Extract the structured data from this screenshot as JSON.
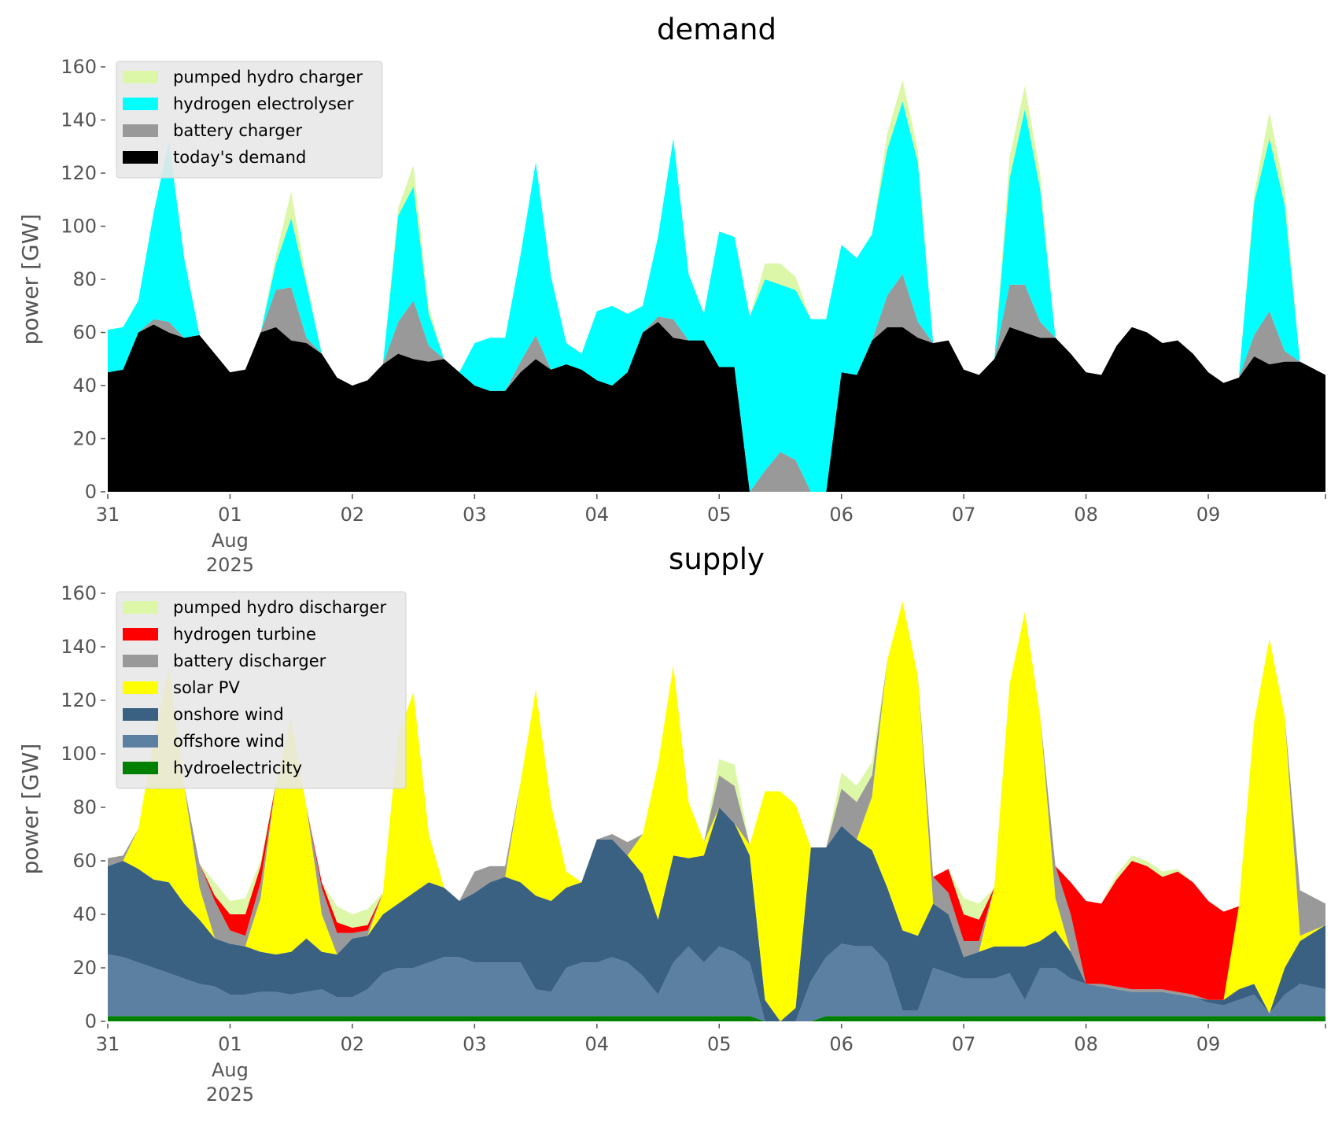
{
  "chart_data": [
    {
      "type": "area",
      "stacked": true,
      "title": "demand",
      "xlabel": "",
      "ylabel": "power [GW]",
      "ylim": [
        0,
        160
      ],
      "yticks": [
        0,
        20,
        40,
        60,
        80,
        100,
        120,
        140,
        160
      ],
      "x_unit": "hours since 2025-07-31 00:00",
      "x_step_hours": 3,
      "xlim": [
        0,
        239
      ],
      "xticks": [
        {
          "hour": 0,
          "label": "31"
        },
        {
          "hour": 24,
          "label": "01",
          "sub1": "Aug",
          "sub2": "2025"
        },
        {
          "hour": 48,
          "label": "02"
        },
        {
          "hour": 72,
          "label": "03"
        },
        {
          "hour": 96,
          "label": "04"
        },
        {
          "hour": 120,
          "label": "05"
        },
        {
          "hour": 144,
          "label": "06"
        },
        {
          "hour": 168,
          "label": "07"
        },
        {
          "hour": 192,
          "label": "08"
        },
        {
          "hour": 216,
          "label": "09"
        }
      ],
      "legend_position": "top-left",
      "legend_order": [
        "pumped hydro charger",
        "hydrogen electrolyser",
        "battery charger",
        "today's demand"
      ],
      "series": [
        {
          "name": "today's demand",
          "color": "#000000",
          "values": [
            45,
            46,
            60,
            63,
            60,
            58,
            59,
            52,
            45,
            46,
            60,
            62,
            57,
            56,
            52,
            43,
            40,
            42,
            48,
            52,
            50,
            49,
            50,
            45,
            40,
            38,
            38,
            45,
            50,
            46,
            48,
            46,
            42,
            40,
            45,
            60,
            64,
            58,
            57,
            57,
            47,
            47,
            0,
            0,
            0,
            0,
            0,
            0,
            45,
            44,
            57,
            62,
            62,
            58,
            56,
            57,
            46,
            44,
            50,
            62,
            60,
            58,
            58,
            52,
            45,
            44,
            55,
            62,
            60,
            56,
            57,
            52,
            45,
            41,
            43,
            51,
            48,
            49,
            49,
            44
          ]
        },
        {
          "name": "battery charger",
          "color": "#999999",
          "values": [
            0,
            0,
            0,
            2,
            4,
            0,
            0,
            0,
            0,
            0,
            0,
            14,
            20,
            2,
            0,
            0,
            0,
            0,
            0,
            12,
            22,
            6,
            0,
            0,
            0,
            0,
            0,
            4,
            9,
            0,
            0,
            0,
            0,
            0,
            0,
            0,
            2,
            7,
            0,
            0,
            0,
            0,
            0,
            8,
            15,
            12,
            0,
            0,
            0,
            0,
            0,
            12,
            20,
            6,
            0,
            0,
            0,
            0,
            0,
            16,
            18,
            6,
            0,
            0,
            0,
            0,
            0,
            0,
            0,
            0,
            0,
            0,
            0,
            0,
            0,
            8,
            20,
            4,
            0,
            0
          ]
        },
        {
          "name": "hydrogen electrolyser",
          "color": "#00ffff",
          "values": [
            16,
            16,
            12,
            40,
            68,
            30,
            0,
            0,
            0,
            0,
            0,
            10,
            26,
            20,
            0,
            0,
            0,
            0,
            0,
            40,
            43,
            12,
            0,
            0,
            16,
            20,
            20,
            40,
            65,
            35,
            8,
            6,
            26,
            30,
            22,
            10,
            30,
            68,
            25,
            10,
            51,
            49,
            66,
            72,
            63,
            64,
            65,
            65,
            48,
            44,
            40,
            55,
            65,
            60,
            0,
            0,
            0,
            0,
            0,
            40,
            66,
            50,
            0,
            0,
            0,
            0,
            0,
            0,
            0,
            0,
            0,
            0,
            0,
            0,
            0,
            50,
            65,
            55,
            0,
            0
          ]
        },
        {
          "name": "pumped hydro charger",
          "color": "#dcf7a8",
          "values": [
            0,
            0,
            0,
            0,
            0,
            0,
            0,
            0,
            0,
            0,
            0,
            3,
            10,
            2,
            0,
            0,
            0,
            0,
            0,
            3,
            8,
            3,
            0,
            0,
            0,
            0,
            0,
            0,
            0,
            0,
            0,
            0,
            0,
            0,
            0,
            0,
            0,
            0,
            0,
            0,
            0,
            0,
            0,
            6,
            8,
            5,
            0,
            0,
            0,
            0,
            0,
            6,
            8,
            5,
            0,
            0,
            0,
            0,
            0,
            8,
            9,
            6,
            0,
            0,
            0,
            0,
            0,
            0,
            0,
            0,
            0,
            0,
            0,
            0,
            0,
            3,
            10,
            6,
            0,
            0
          ]
        }
      ]
    },
    {
      "type": "area",
      "stacked": true,
      "title": "supply",
      "xlabel": "",
      "ylabel": "power [GW]",
      "ylim": [
        0,
        160
      ],
      "yticks": [
        0,
        20,
        40,
        60,
        80,
        100,
        120,
        140,
        160
      ],
      "x_unit": "hours since 2025-07-31 00:00",
      "x_step_hours": 3,
      "xlim": [
        0,
        239
      ],
      "xticks": [
        {
          "hour": 0,
          "label": "31"
        },
        {
          "hour": 24,
          "label": "01",
          "sub1": "Aug",
          "sub2": "2025"
        },
        {
          "hour": 48,
          "label": "02"
        },
        {
          "hour": 72,
          "label": "03"
        },
        {
          "hour": 96,
          "label": "04"
        },
        {
          "hour": 120,
          "label": "05"
        },
        {
          "hour": 144,
          "label": "06"
        },
        {
          "hour": 168,
          "label": "07"
        },
        {
          "hour": 192,
          "label": "08"
        },
        {
          "hour": 216,
          "label": "09"
        }
      ],
      "legend_position": "top-left",
      "legend_order": [
        "pumped hydro discharger",
        "hydrogen turbine",
        "battery discharger",
        "solar PV",
        "onshore wind",
        "offshore wind",
        "hydroelectricity"
      ],
      "series": [
        {
          "name": "hydroelectricity",
          "color": "#008000",
          "values": [
            2,
            2,
            2,
            2,
            2,
            2,
            2,
            2,
            2,
            2,
            2,
            2,
            2,
            2,
            2,
            2,
            2,
            2,
            2,
            2,
            2,
            2,
            2,
            2,
            2,
            2,
            2,
            2,
            2,
            2,
            2,
            2,
            2,
            2,
            2,
            2,
            2,
            2,
            2,
            2,
            2,
            2,
            2,
            0,
            0,
            0,
            0,
            2,
            2,
            2,
            2,
            2,
            2,
            2,
            2,
            2,
            2,
            2,
            2,
            2,
            2,
            2,
            2,
            2,
            2,
            2,
            2,
            2,
            2,
            2,
            2,
            2,
            2,
            2,
            2,
            2,
            2,
            2,
            2,
            2
          ]
        },
        {
          "name": "offshore wind",
          "color": "#5b80a2",
          "values": [
            23,
            22,
            20,
            18,
            16,
            14,
            12,
            11,
            8,
            8,
            9,
            9,
            8,
            9,
            10,
            7,
            7,
            10,
            16,
            18,
            18,
            20,
            22,
            22,
            20,
            20,
            20,
            20,
            10,
            9,
            18,
            20,
            20,
            22,
            20,
            15,
            8,
            20,
            26,
            20,
            26,
            24,
            20,
            0,
            0,
            0,
            15,
            22,
            27,
            26,
            26,
            20,
            2,
            2,
            18,
            16,
            14,
            14,
            14,
            16,
            6,
            18,
            18,
            14,
            12,
            11,
            10,
            9,
            9,
            9,
            8,
            7,
            5,
            4,
            6,
            8,
            1,
            8,
            12,
            10
          ]
        },
        {
          "name": "onshore wind",
          "color": "#3b6182",
          "values": [
            33,
            36,
            35,
            33,
            34,
            28,
            24,
            18,
            19,
            18,
            15,
            14,
            16,
            20,
            14,
            16,
            22,
            20,
            22,
            24,
            28,
            30,
            26,
            21,
            26,
            30,
            32,
            30,
            35,
            34,
            30,
            30,
            46,
            44,
            40,
            38,
            28,
            40,
            33,
            40,
            52,
            48,
            40,
            8,
            0,
            5,
            50,
            41,
            44,
            40,
            36,
            28,
            30,
            28,
            24,
            22,
            8,
            10,
            12,
            10,
            20,
            10,
            14,
            10,
            0,
            0,
            0,
            0,
            0,
            0,
            0,
            0,
            1,
            2,
            4,
            4,
            0,
            10,
            16,
            24
          ]
        },
        {
          "name": "solar PV",
          "color": "#ffff00",
          "values": [
            0,
            0,
            15,
            52,
            80,
            44,
            12,
            0,
            0,
            0,
            20,
            64,
            87,
            49,
            14,
            0,
            0,
            0,
            8,
            63,
            75,
            18,
            0,
            0,
            0,
            0,
            0,
            37,
            77,
            36,
            6,
            0,
            0,
            0,
            0,
            15,
            58,
            71,
            21,
            5,
            0,
            0,
            4,
            78,
            86,
            76,
            0,
            0,
            0,
            0,
            20,
            85,
            123,
            97,
            0,
            0,
            0,
            0,
            22,
            98,
            125,
            84,
            12,
            0,
            0,
            0,
            0,
            0,
            0,
            0,
            0,
            0,
            0,
            0,
            31,
            98,
            140,
            94,
            2,
            0
          ]
        },
        {
          "name": "battery discharger",
          "color": "#999999",
          "values": [
            3,
            2,
            0,
            0,
            0,
            0,
            9,
            14,
            5,
            4,
            6,
            0,
            0,
            0,
            10,
            8,
            2,
            2,
            0,
            0,
            0,
            0,
            0,
            0,
            8,
            6,
            4,
            0,
            0,
            0,
            0,
            0,
            0,
            2,
            5,
            0,
            0,
            0,
            0,
            0,
            12,
            14,
            0,
            0,
            0,
            0,
            0,
            0,
            14,
            14,
            8,
            0,
            0,
            0,
            10,
            8,
            6,
            4,
            0,
            0,
            0,
            0,
            12,
            14,
            0,
            1,
            1,
            1,
            1,
            1,
            1,
            1,
            0,
            0,
            0,
            0,
            0,
            0,
            17,
            8
          ]
        },
        {
          "name": "hydrogen turbine",
          "color": "#ff0000",
          "values": [
            0,
            0,
            0,
            0,
            0,
            0,
            0,
            2,
            6,
            8,
            6,
            0,
            0,
            0,
            2,
            4,
            2,
            2,
            0,
            0,
            0,
            0,
            0,
            0,
            0,
            0,
            0,
            0,
            0,
            0,
            0,
            0,
            0,
            0,
            0,
            0,
            0,
            0,
            0,
            0,
            0,
            0,
            0,
            0,
            0,
            0,
            0,
            0,
            0,
            0,
            0,
            0,
            0,
            0,
            0,
            9,
            10,
            8,
            0,
            0,
            0,
            0,
            0,
            12,
            31,
            30,
            40,
            48,
            46,
            42,
            45,
            42,
            37,
            33,
            0,
            0,
            0,
            0,
            0,
            0
          ]
        },
        {
          "name": "pumped hydro discharger",
          "color": "#dcf7a8",
          "values": [
            0,
            0,
            0,
            0,
            0,
            0,
            0,
            5,
            5,
            6,
            2,
            0,
            0,
            0,
            0,
            6,
            5,
            6,
            0,
            0,
            0,
            0,
            0,
            0,
            0,
            0,
            0,
            0,
            0,
            0,
            0,
            0,
            0,
            0,
            0,
            0,
            0,
            0,
            0,
            0,
            6,
            8,
            0,
            0,
            0,
            0,
            0,
            0,
            6,
            6,
            5,
            0,
            0,
            0,
            0,
            0,
            6,
            6,
            0,
            0,
            0,
            0,
            0,
            0,
            0,
            0,
            2,
            2,
            2,
            2,
            1,
            0,
            0,
            0,
            0,
            0,
            0,
            0,
            0,
            0
          ]
        }
      ]
    }
  ]
}
